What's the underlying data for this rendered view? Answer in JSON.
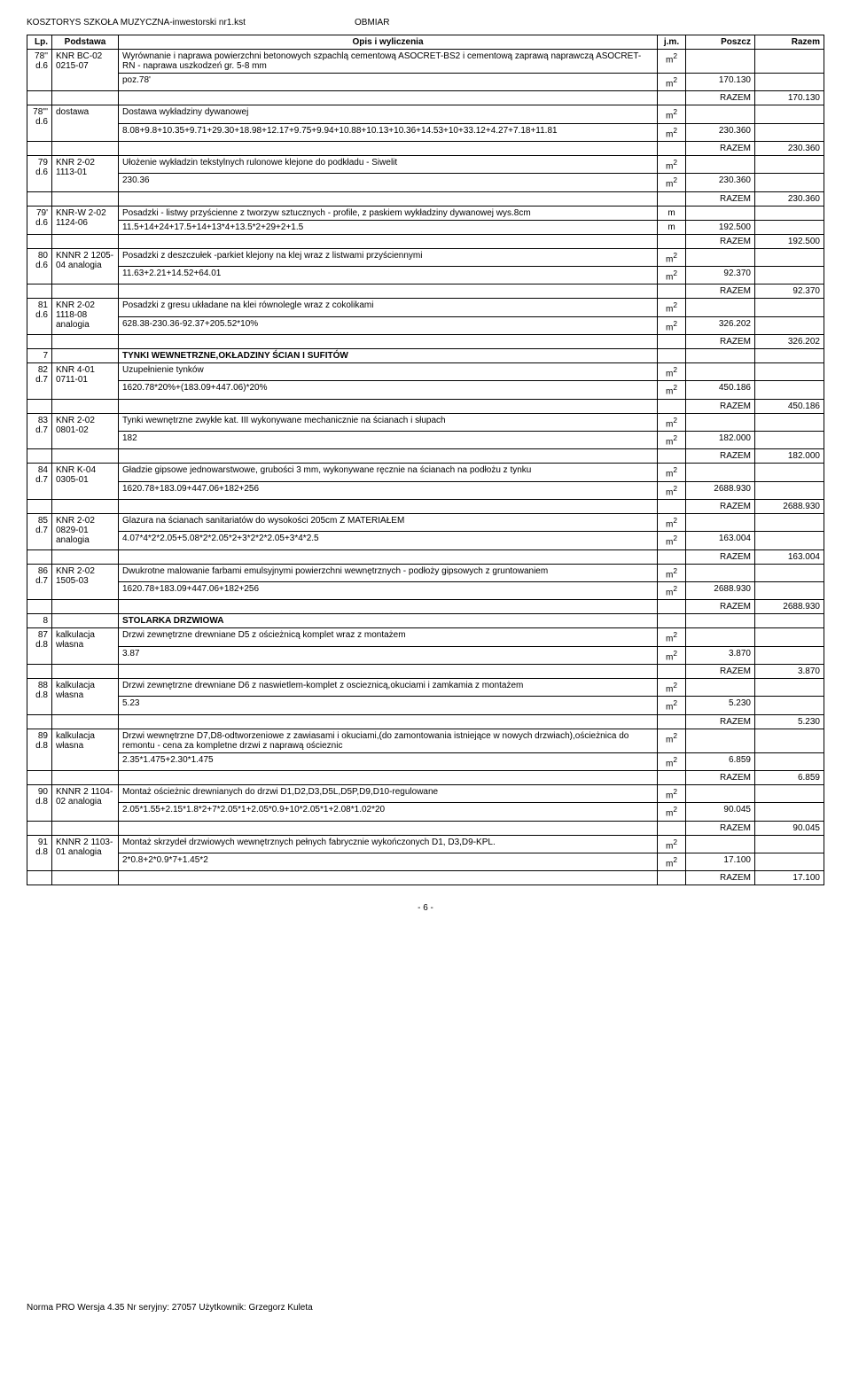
{
  "header": {
    "file": "KOSZTORYS SZKOŁA MUZYCZNA-inwestorski nr1.kst",
    "section": "OBMIAR"
  },
  "columns": {
    "lp": "Lp.",
    "podstawa": "Podstawa",
    "opis": "Opis i wyliczenia",
    "jm": "j.m.",
    "poszcz": "Poszcz",
    "razem": "Razem"
  },
  "rows": [
    {
      "lp": "78'' d.6",
      "pod": "KNR BC-02 0215-07",
      "opis": "Wyrównanie i naprawa powierzchni betonowych szpachlą cementową ASOCRET-BS2 i cementową zaprawą naprawczą ASOCRET-RN - naprawa uszkodzeń gr. 5-8 mm",
      "jm": "m2",
      "sub": [
        {
          "opis": "poz.78'",
          "jm": "m2",
          "poszcz": "170.130"
        }
      ],
      "razem": "170.130"
    },
    {
      "lp": "78''' d.6",
      "pod": "dostawa",
      "opis": "Dostawa wykładziny dywanowej",
      "jm": "m2",
      "sub": [
        {
          "opis": "8.08+9.8+10.35+9.71+29.30+18.98+12.17+9.75+9.94+10.88+10.13+10.36+14.53+10+33.12+4.27+7.18+11.81",
          "jm": "m2",
          "poszcz": "230.360"
        }
      ],
      "razem": "230.360"
    },
    {
      "lp": "79 d.6",
      "pod": "KNR 2-02 1113-01",
      "opis": "Ułożenie wykładzin tekstylnych rulonowe klejone do podkładu - Siwelit",
      "jm": "m2",
      "sub": [
        {
          "opis": "230.36",
          "jm": "m2",
          "poszcz": "230.360"
        }
      ],
      "razem": "230.360"
    },
    {
      "lp": "79' d.6",
      "pod": "KNR-W 2-02 1124-06",
      "opis": "Posadzki - listwy przyścienne z tworzyw sztucznych - profile, z paskiem wykładziny dywanowej wys.8cm",
      "jm": "m",
      "sub": [
        {
          "opis": "11.5+14+24+17.5+14+13*4+13.5*2+29+2+1.5",
          "jm": "m",
          "poszcz": "192.500"
        }
      ],
      "razem": "192.500"
    },
    {
      "lp": "80 d.6",
      "pod": "KNNR 2 1205-04 analogia",
      "opis": "Posadzki z deszczułek -parkiet klejony na klej wraz z listwami przyściennymi",
      "jm": "m2",
      "sub": [
        {
          "opis": "11.63+2.21+14.52+64.01",
          "jm": "m2",
          "poszcz": "92.370"
        }
      ],
      "razem": "92.370"
    },
    {
      "lp": "81 d.6",
      "pod": "KNR 2-02 1118-08 analogia",
      "opis": "Posadzki z gresu układane na klei równolegle wraz z cokolikami",
      "jm": "m2",
      "sub": [
        {
          "opis": "628.38-230.36-92.37+205.52*10%",
          "jm": "m2",
          "poszcz": "326.202"
        }
      ],
      "razem": "326.202"
    },
    {
      "lp": "7",
      "pod": "",
      "opis": "TYNKI WEWNETRZNE,OKŁADZINY ŚCIAN I SUFITÓW",
      "section": true
    },
    {
      "lp": "82 d.7",
      "pod": "KNR 4-01 0711-01",
      "opis": "Uzupełnienie tynków",
      "jm": "m2",
      "sub": [
        {
          "opis": "1620.78*20%+(183.09+447.06)*20%",
          "jm": "m2",
          "poszcz": "450.186"
        }
      ],
      "razem": "450.186"
    },
    {
      "lp": "83 d.7",
      "pod": "KNR 2-02 0801-02",
      "opis": "Tynki wewnętrzne zwykłe kat. III wykonywane mechanicznie na ścianach i słupach",
      "jm": "m2",
      "sub": [
        {
          "opis": "182",
          "jm": "m2",
          "poszcz": "182.000"
        }
      ],
      "razem": "182.000"
    },
    {
      "lp": "84 d.7",
      "pod": "KNR K-04 0305-01",
      "opis": "Gładzie gipsowe jednowarstwowe, grubości 3 mm, wykonywane ręcznie na ścianach na podłożu z tynku",
      "jm": "m2",
      "sub": [
        {
          "opis": "1620.78+183.09+447.06+182+256",
          "jm": "m2",
          "poszcz": "2688.930"
        }
      ],
      "razem": "2688.930"
    },
    {
      "lp": "85 d.7",
      "pod": "KNR 2-02 0829-01 analogia",
      "opis": "Glazura na ścianach sanitariatów do wysokości 205cm Z MATERIAŁEM",
      "jm": "m2",
      "sub": [
        {
          "opis": "4.07*4*2*2.05+5.08*2*2.05*2+3*2*2*2.05+3*4*2.5",
          "jm": "m2",
          "poszcz": "163.004"
        }
      ],
      "razem": "163.004"
    },
    {
      "lp": "86 d.7",
      "pod": "KNR 2-02 1505-03",
      "opis": "Dwukrotne malowanie farbami emulsyjnymi powierzchni wewnętrznych - podłoży gipsowych z gruntowaniem",
      "jm": "m2",
      "sub": [
        {
          "opis": "1620.78+183.09+447.06+182+256",
          "jm": "m2",
          "poszcz": "2688.930"
        }
      ],
      "razem": "2688.930"
    },
    {
      "lp": "8",
      "pod": "",
      "opis": "STOLARKA DRZWIOWA",
      "section": true
    },
    {
      "lp": "87 d.8",
      "pod": "kalkulacja własna",
      "opis": "Drzwi zewnętrzne drewniane D5 z ościeżnicą komplet wraz z montażem",
      "jm": "m2",
      "sub": [
        {
          "opis": "3.87",
          "jm": "m2",
          "poszcz": "3.870"
        }
      ],
      "razem": "3.870"
    },
    {
      "lp": "88 d.8",
      "pod": "kalkulacja własna",
      "opis": "Drzwi zewnętrzne drewniane D6  z naswietlem-komplet z oscieznicą,okuciami i zamkamia z montażem",
      "jm": "m2",
      "sub": [
        {
          "opis": "5.23",
          "jm": "m2",
          "poszcz": "5.230"
        }
      ],
      "razem": "5.230"
    },
    {
      "lp": "89 d.8",
      "pod": "kalkulacja własna",
      "opis": "Drzwi wewnętrzne D7,D8-odtworzeniowe z zawiasami i okuciami,(do zamontowania istniejące w nowych drzwiach),ościeżnica do remontu - cena za kompletne drzwi z naprawą ościeznic",
      "jm": "m2",
      "sub": [
        {
          "opis": "2.35*1.475+2.30*1.475",
          "jm": "m2",
          "poszcz": "6.859"
        }
      ],
      "razem": "6.859"
    },
    {
      "lp": "90 d.8",
      "pod": "KNNR 2 1104-02 analogia",
      "opis": "Montaż ościeżnic drewnianych do drzwi D1,D2,D3,D5L,D5P,D9,D10-regulowane",
      "jm": "m2",
      "sub": [
        {
          "opis": "2.05*1.55+2.15*1.8*2+7*2.05*1+2.05*0.9+10*2.05*1+2.08*1.02*20",
          "jm": "m2",
          "poszcz": "90.045"
        }
      ],
      "razem": "90.045"
    },
    {
      "lp": "91 d.8",
      "pod": "KNNR 2 1103-01 analogia",
      "opis": "Montaż skrzydeł drzwiowych wewnętrznych pełnych fabrycznie wykończonych D1, D3,D9-KPL.",
      "jm": "m2",
      "sub": [
        {
          "opis": "2*0.8+2*0.9*7+1.45*2",
          "jm": "m2",
          "poszcz": "17.100"
        }
      ],
      "razem": "17.100"
    }
  ],
  "razem_label": "RAZEM",
  "footer": {
    "page": "- 6 -",
    "norma": "Norma PRO Wersja 4.35 Nr seryjny: 27057 Użytkownik: Grzegorz Kuleta"
  }
}
